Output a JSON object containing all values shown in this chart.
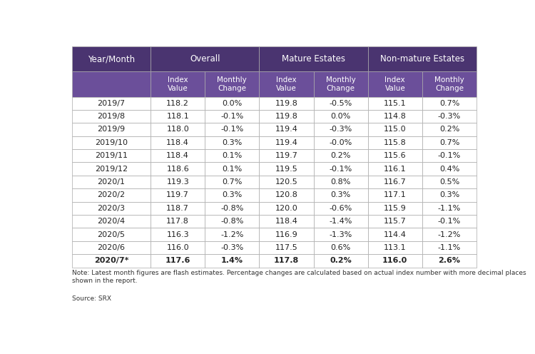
{
  "title_row": [
    "Year/Month",
    "Overall",
    "",
    "Mature Estates",
    "",
    "Non-mature Estates",
    ""
  ],
  "sub_header": [
    "",
    "Index\nValue",
    "Monthly\nChange",
    "Index\nValue",
    "Monthly\nChange",
    "Index\nValue",
    "Monthly\nChange"
  ],
  "rows": [
    [
      "2019/7",
      "118.2",
      "0.0%",
      "119.8",
      "-0.5%",
      "115.1",
      "0.7%"
    ],
    [
      "2019/8",
      "118.1",
      "-0.1%",
      "119.8",
      "0.0%",
      "114.8",
      "-0.3%"
    ],
    [
      "2019/9",
      "118.0",
      "-0.1%",
      "119.4",
      "-0.3%",
      "115.0",
      "0.2%"
    ],
    [
      "2019/10",
      "118.4",
      "0.3%",
      "119.4",
      "-0.0%",
      "115.8",
      "0.7%"
    ],
    [
      "2019/11",
      "118.4",
      "0.1%",
      "119.7",
      "0.2%",
      "115.6",
      "-0.1%"
    ],
    [
      "2019/12",
      "118.6",
      "0.1%",
      "119.5",
      "-0.1%",
      "116.1",
      "0.4%"
    ],
    [
      "2020/1",
      "119.3",
      "0.7%",
      "120.5",
      "0.8%",
      "116.7",
      "0.5%"
    ],
    [
      "2020/2",
      "119.7",
      "0.3%",
      "120.8",
      "0.3%",
      "117.1",
      "0.3%"
    ],
    [
      "2020/3",
      "118.7",
      "-0.8%",
      "120.0",
      "-0.6%",
      "115.9",
      "-1.1%"
    ],
    [
      "2020/4",
      "117.8",
      "-0.8%",
      "118.4",
      "-1.4%",
      "115.7",
      "-0.1%"
    ],
    [
      "2020/5",
      "116.3",
      "-1.2%",
      "116.9",
      "-1.3%",
      "114.4",
      "-1.2%"
    ],
    [
      "2020/6",
      "116.0",
      "-0.3%",
      "117.5",
      "0.6%",
      "113.1",
      "-1.1%"
    ],
    [
      "2020/7*",
      "117.6",
      "1.4%",
      "117.8",
      "0.2%",
      "116.0",
      "2.6%"
    ]
  ],
  "note": "Note: Latest month figures are flash estimates. Percentage changes are calculated based on actual index number with more decimal places\nshown in the report.",
  "source": "Source: SRX",
  "header_bg": "#4a3470",
  "header_text": "#ffffff",
  "subheader_bg": "#6b4f9a",
  "subheader_text": "#ffffff",
  "row_bg": "#ffffff",
  "border_color": "#aaaaaa",
  "text_color": "#222222",
  "last_row_bold": true,
  "col_widths_rel": [
    1.45,
    1.0,
    1.0,
    1.0,
    1.0,
    1.0,
    1.0
  ]
}
